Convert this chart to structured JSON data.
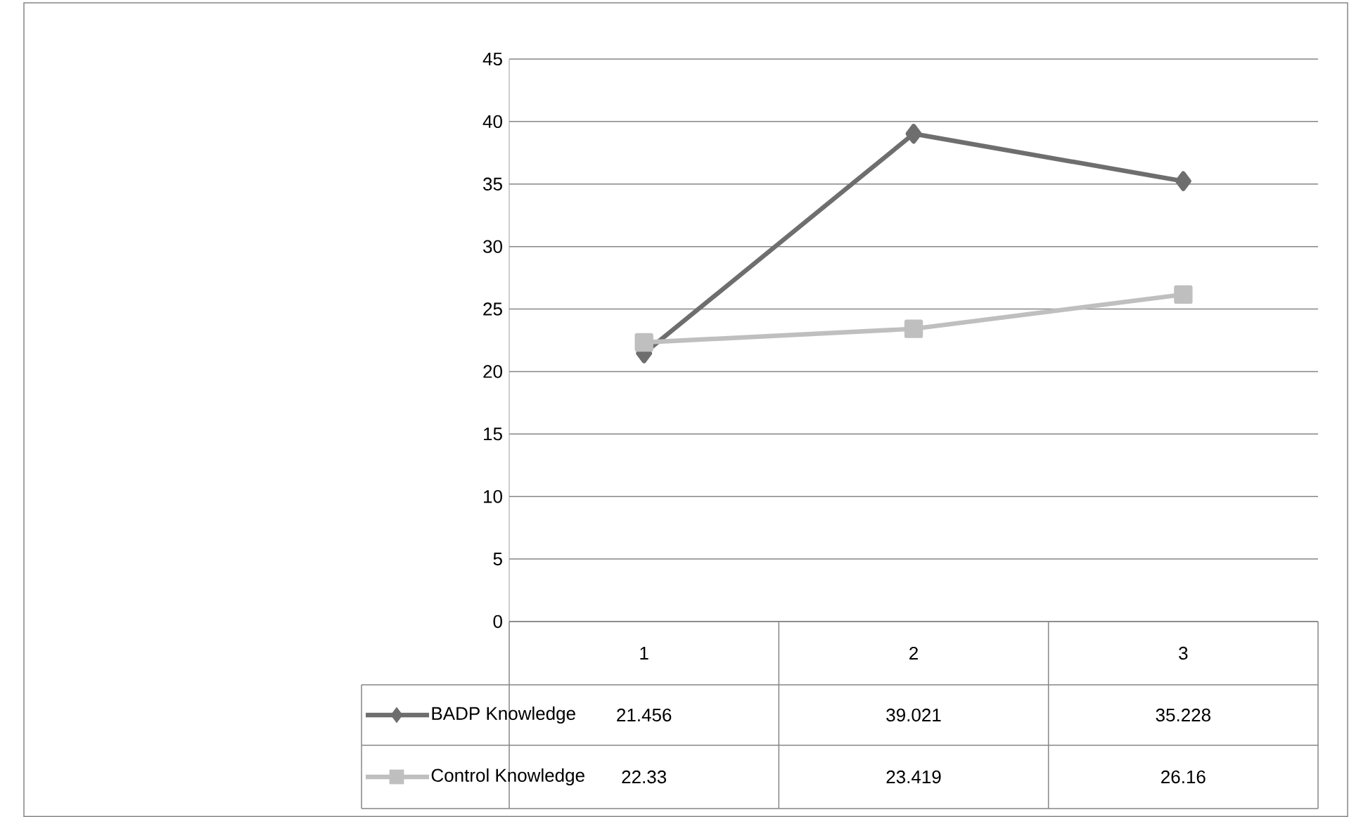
{
  "chart_data": {
    "type": "line",
    "categories": [
      "1",
      "2",
      "3"
    ],
    "series": [
      {
        "name": "BADP Knowledge",
        "color": "#6e6e6e",
        "marker": "diamond",
        "values": [
          21.456,
          39.021,
          35.228
        ]
      },
      {
        "name": "Control Knowledge",
        "color": "#bfbfbf",
        "marker": "square",
        "values": [
          22.33,
          23.419,
          26.16
        ]
      }
    ],
    "ylim": [
      0,
      45
    ],
    "yticks": [
      0,
      5,
      10,
      15,
      20,
      25,
      30,
      35,
      40,
      45
    ],
    "grid": "y",
    "legend": "bottom",
    "data_labels": true
  }
}
